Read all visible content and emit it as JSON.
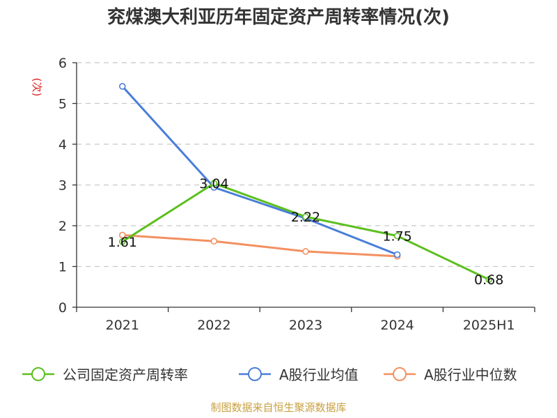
{
  "title": "兖煤澳大利亚历年固定资产周转率情况(次)",
  "source": "制图数据来自恒生聚源数据库",
  "chart_data": {
    "type": "line",
    "title": "兖煤澳大利亚历年固定资产周转率情况(次)",
    "ylabel": "(次)",
    "xlabel": "",
    "ylim": [
      0,
      6
    ],
    "yticks": [
      0,
      1,
      2,
      3,
      4,
      5,
      6
    ],
    "grid": "horizontal dashed",
    "legend_position": "bottom",
    "categories": [
      "2021",
      "2022",
      "2023",
      "2024",
      "2025H1"
    ],
    "series": [
      {
        "name": "公司固定资产周转率",
        "color": "#5cbf1e",
        "values": [
          1.61,
          3.04,
          2.22,
          1.75,
          0.68
        ],
        "labels": [
          "1.61",
          "3.04",
          "2.22",
          "1.75",
          "0.68"
        ]
      },
      {
        "name": "A股行业均值",
        "color": "#4a7ed8",
        "values": [
          5.42,
          2.94,
          2.18,
          1.29,
          null
        ]
      },
      {
        "name": "A股行业中位数",
        "color": "#f39060",
        "values": [
          1.77,
          1.62,
          1.37,
          1.25,
          null
        ]
      }
    ]
  }
}
